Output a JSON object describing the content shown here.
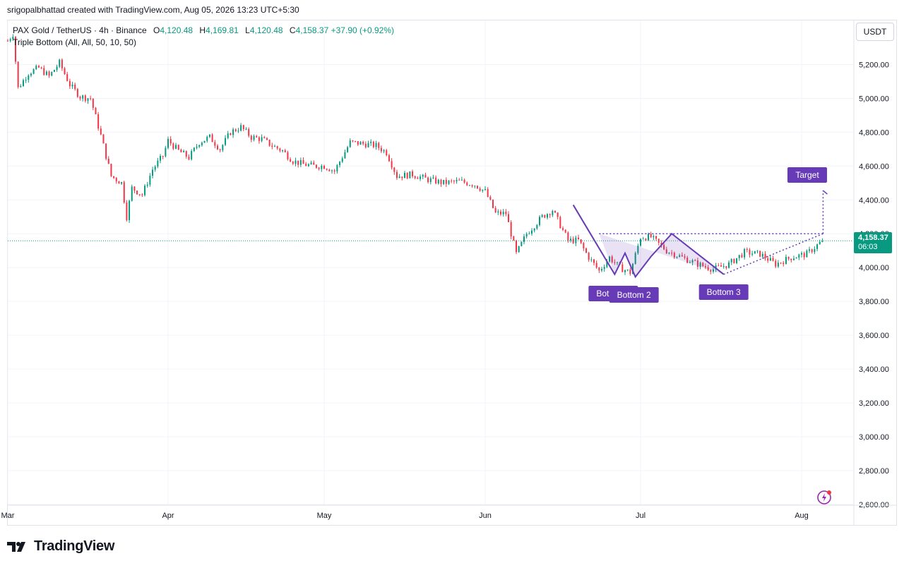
{
  "caption": "srigopalbhattad created with TradingView.com, Aug 05, 2026 13:23 UTC+5:30",
  "legend": {
    "symbol": "PAX Gold / TetherUS · 4h · Binance",
    "o_label": "O",
    "o_value": "4,120.48",
    "h_label": "H",
    "h_value": "4,169.81",
    "l_label": "L",
    "l_value": "4,120.48",
    "c_label": "C",
    "c_value": "4,158.37",
    "change": "+37.90 (+0.92%)",
    "indicator": "Triple Bottom (All, All, 50, 10, 50)"
  },
  "currency": "USDT",
  "last_price": {
    "price": "4,158.37",
    "countdown": "06:03"
  },
  "colors": {
    "up": "#089981",
    "down": "#f23645",
    "pattern": "#673ab7",
    "grid": "#f0f3fa",
    "fill": "rgba(103,58,183,0.15)"
  },
  "footer": {
    "brand": "TradingView"
  },
  "icons": {
    "logo": "tradingview-logo-icon",
    "flash": "flash-icon"
  },
  "chart_data": {
    "type": "candlestick",
    "timeframe": "4h",
    "x_ticks": [
      "Mar",
      "Apr",
      "May",
      "Jun",
      "Jul",
      "Aug"
    ],
    "y_ticks": [
      "5,200.00",
      "5,000.00",
      "4,800.00",
      "4,600.00",
      "4,400.00",
      "4,200.00",
      "4,000.00",
      "3,800.00",
      "3,600.00",
      "3,400.00",
      "3,200.00",
      "3,000.00",
      "2,800.00",
      "2,600.00"
    ],
    "ylim": [
      2600,
      5460
    ],
    "last_close": 4158.37,
    "price_path": [
      [
        "Mar 01",
        5340
      ],
      [
        "Mar 02",
        5380
      ],
      [
        "Mar 03",
        5060
      ],
      [
        "Mar 05",
        5150
      ],
      [
        "Mar 07",
        5180
      ],
      [
        "Mar 09",
        5130
      ],
      [
        "Mar 11",
        5210
      ],
      [
        "Mar 13",
        5080
      ],
      [
        "Mar 15",
        5010
      ],
      [
        "Mar 17",
        5000
      ],
      [
        "Mar 19",
        4780
      ],
      [
        "Mar 21",
        4540
      ],
      [
        "Mar 23",
        4500
      ],
      [
        "Mar 24",
        4300
      ],
      [
        "Mar 25",
        4470
      ],
      [
        "Mar 27",
        4430
      ],
      [
        "Mar 29",
        4580
      ],
      [
        "Mar 31",
        4660
      ],
      [
        "Apr 01",
        4750
      ],
      [
        "Apr 03",
        4690
      ],
      [
        "Apr 05",
        4650
      ],
      [
        "Apr 07",
        4740
      ],
      [
        "Apr 09",
        4770
      ],
      [
        "Apr 11",
        4700
      ],
      [
        "Apr 13",
        4800
      ],
      [
        "Apr 15",
        4830
      ],
      [
        "Apr 17",
        4770
      ],
      [
        "Apr 19",
        4760
      ],
      [
        "Apr 21",
        4720
      ],
      [
        "Apr 23",
        4690
      ],
      [
        "Apr 25",
        4630
      ],
      [
        "Apr 27",
        4610
      ],
      [
        "Apr 29",
        4600
      ],
      [
        "May 01",
        4600
      ],
      [
        "May 03",
        4570
      ],
      [
        "May 06",
        4740
      ],
      [
        "May 09",
        4730
      ],
      [
        "May 11",
        4720
      ],
      [
        "May 13",
        4680
      ],
      [
        "May 15",
        4540
      ],
      [
        "May 18",
        4550
      ],
      [
        "May 21",
        4520
      ],
      [
        "May 24",
        4500
      ],
      [
        "May 27",
        4510
      ],
      [
        "May 30",
        4490
      ],
      [
        "Jun 01",
        4450
      ],
      [
        "Jun 03",
        4320
      ],
      [
        "Jun 05",
        4320
      ],
      [
        "Jun 07",
        4080
      ],
      [
        "Jun 09",
        4200
      ],
      [
        "Jun 12",
        4300
      ],
      [
        "Jun 14",
        4340
      ],
      [
        "Jun 17",
        4160
      ],
      [
        "Jun 19",
        4160
      ],
      [
        "Jun 21",
        4060
      ],
      [
        "Jun 23",
        3980
      ],
      [
        "Jun 25",
        4060
      ],
      [
        "Jun 27",
        4000
      ],
      [
        "Jun 29",
        3970
      ],
      [
        "Jul 01",
        4180
      ],
      [
        "Jul 03",
        4180
      ],
      [
        "Jul 06",
        4100
      ],
      [
        "Jul 09",
        4060
      ],
      [
        "Jul 12",
        4020
      ],
      [
        "Jul 15",
        3990
      ],
      [
        "Jul 18",
        4020
      ],
      [
        "Jul 21",
        4090
      ],
      [
        "Jul 24",
        4080
      ],
      [
        "Jul 27",
        4020
      ],
      [
        "Jul 30",
        4060
      ],
      [
        "Aug 02",
        4080
      ],
      [
        "Aug 05",
        4158.37
      ]
    ],
    "pattern": {
      "name": "Triple Bottom",
      "points": [
        [
          "Jun 18",
          4370
        ],
        [
          "Jun 26",
          3960
        ],
        [
          "Jun 28",
          4085
        ],
        [
          "Jun 30",
          3945
        ],
        [
          "Jul 03",
          4065
        ],
        [
          "Jul 07",
          4200
        ],
        [
          "Jul 17",
          3960
        ]
      ],
      "neckline": 4200,
      "labels": [
        {
          "text": "Bottom 1",
          "date": "Jun 26"
        },
        {
          "text": "Bottom 2",
          "date": "Jun 30"
        },
        {
          "text": "Bottom 3",
          "date": "Jul 17"
        }
      ],
      "target_label": "Target",
      "target_price": 4455
    }
  }
}
